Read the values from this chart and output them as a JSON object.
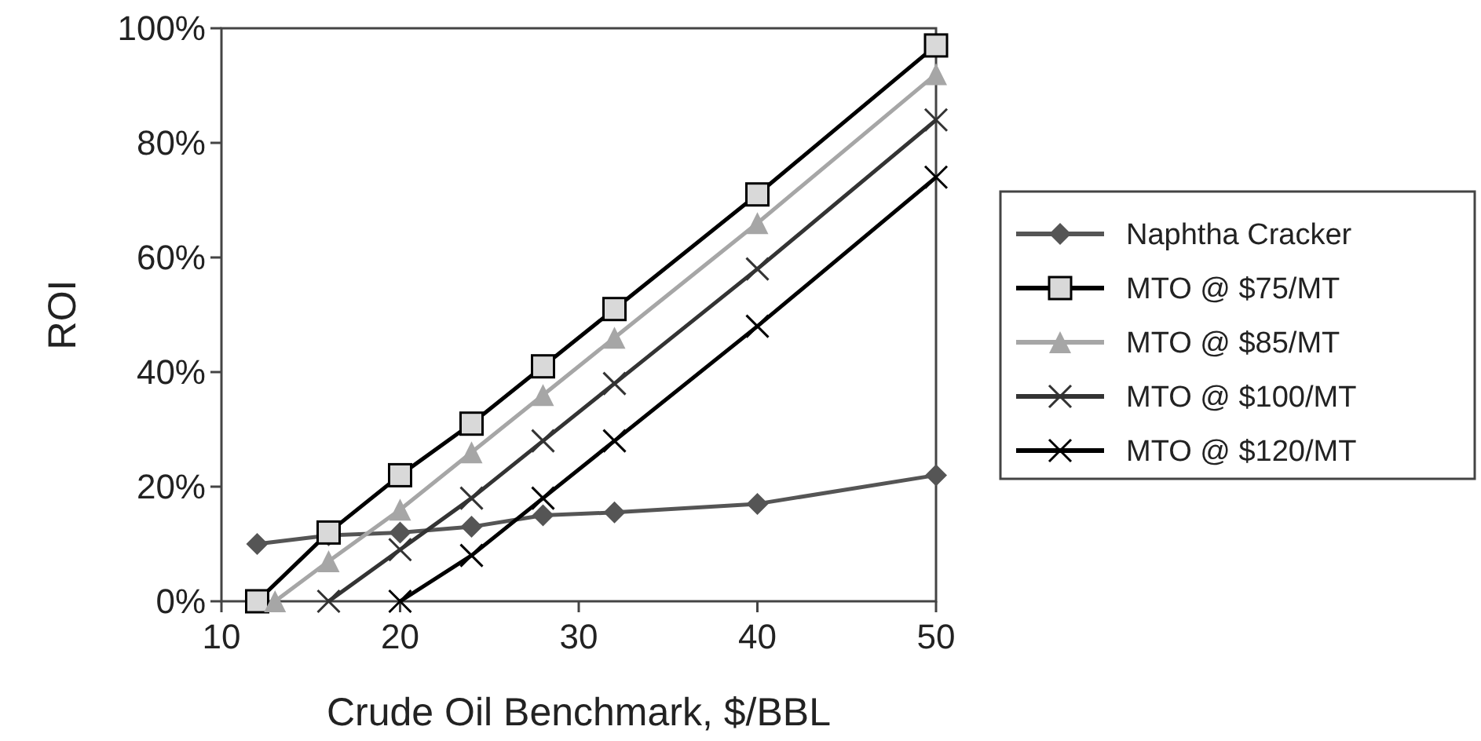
{
  "chart_data": {
    "type": "line",
    "xlabel": "Crude Oil Benchmark, $/BBL",
    "ylabel": "ROI",
    "xlim": [
      10,
      50
    ],
    "xticks": [
      10,
      20,
      30,
      40,
      50
    ],
    "ylim": [
      0,
      100
    ],
    "yticks": [
      {
        "value": 0,
        "label": "0%"
      },
      {
        "value": 20,
        "label": "20%"
      },
      {
        "value": 40,
        "label": "40%"
      },
      {
        "value": 60,
        "label": "60%"
      },
      {
        "value": 80,
        "label": "80%"
      },
      {
        "value": 100,
        "label": "100%"
      }
    ],
    "grid": false,
    "legend": "right",
    "series": [
      {
        "name": "Naphtha Cracker",
        "color": "#555555",
        "marker": "diamond",
        "x": [
          12,
          16,
          20,
          24,
          28,
          32,
          40,
          50
        ],
        "values": [
          10,
          11.5,
          12,
          13,
          15,
          15.5,
          17,
          22
        ]
      },
      {
        "name": "MTO @ $75/MT",
        "color": "#000000",
        "marker": "square",
        "x": [
          12,
          16,
          20,
          24,
          28,
          32,
          40,
          50
        ],
        "values": [
          0,
          12,
          22,
          31,
          41,
          51,
          71,
          97
        ]
      },
      {
        "name": "MTO @ $85/MT",
        "color": "#a6a6a6",
        "marker": "triangle",
        "x": [
          13,
          16,
          20,
          24,
          28,
          32,
          40,
          50
        ],
        "values": [
          0,
          7,
          16,
          26,
          36,
          46,
          66,
          92
        ]
      },
      {
        "name": "MTO @ $100/MT",
        "color": "#333333",
        "marker": "cross",
        "x": [
          16,
          20,
          24,
          28,
          32,
          40,
          50
        ],
        "values": [
          0,
          9,
          18,
          28,
          38,
          58,
          84
        ]
      },
      {
        "name": "MTO @ $120/MT",
        "color": "#000000",
        "marker": "cross",
        "x": [
          20,
          24,
          28,
          32,
          40,
          50
        ],
        "values": [
          0,
          8,
          18,
          28,
          48,
          74
        ]
      }
    ]
  }
}
